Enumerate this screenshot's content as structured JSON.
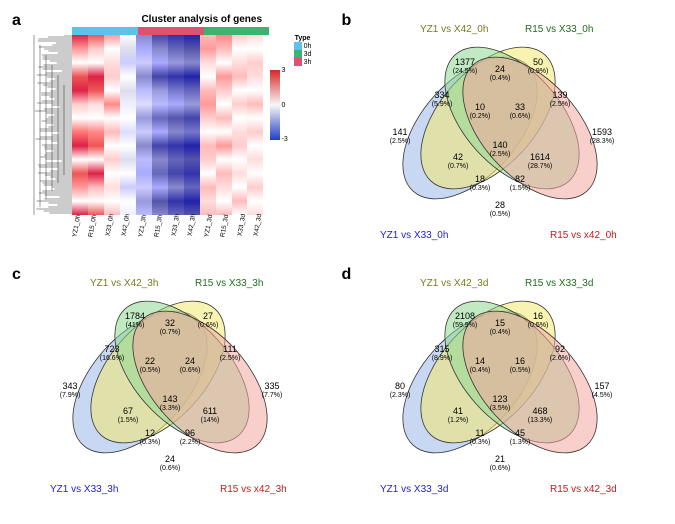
{
  "figure": {
    "panel_a": {
      "label": "a",
      "title": "Cluster analysis of genes",
      "type_legend_title": "Type",
      "type_colors": {
        "0h": "#5ec2e8",
        "3d": "#3cb371",
        "3h": "#e05070"
      },
      "type_bar_order": [
        "0h",
        "0h",
        "0h",
        "0h",
        "3h",
        "3h",
        "3h",
        "3h",
        "3d",
        "3d",
        "3d",
        "3d"
      ],
      "gradient": {
        "max": 3,
        "mid": 0,
        "min": -3,
        "top_color": "#d62728",
        "mid_color": "#ffffff",
        "bot_color": "#2040c0"
      },
      "samples": [
        "YZ1_0h",
        "R15_0h",
        "X33_0h",
        "X42_0h",
        "YZ1_3h",
        "R15_3h",
        "X33_3h",
        "X42_3h",
        "YZ1_3d",
        "R15_3d",
        "X33_3d",
        "X42_3d"
      ],
      "column_gradients": [
        "linear-gradient(#d24,#f99,#fff,#e55,#d24,#fcc,#fff,#f77,#d24,#fff,#e55,#f99,#fff,#d24)",
        "linear-gradient(#e55,#fcc,#fff,#d24,#e55,#fdd,#fff,#f88,#e55,#fff,#d24,#fbb,#fff,#e55)",
        "linear-gradient(#f99,#fff,#fdd,#fcc,#fff,#f88,#fff,#fbb,#fff,#fcc,#fff,#fdd,#fff,#fbb)",
        "linear-gradient(#fff,#dde,#ccf,#fff,#dde,#eef,#fff,#ddf,#fff,#dde,#fff,#ccf,#fff,#eef)",
        "linear-gradient(#88c,#aaf,#ccf,#88c,#bbf,#ddf,#99d,#ccf,#88c,#bbf,#aaf,#ccf,#99d,#bbf)",
        "linear-gradient(#44a,#88c,#aaf,#44a,#99d,#bbf,#66b,#aaf,#44a,#88c,#66b,#aaf,#55a,#88c)",
        "linear-gradient(#33a,#66b,#99d,#33a,#77c,#aaf,#55a,#88c,#33a,#66b,#44a,#88c,#33a,#66b)",
        "linear-gradient(#22a,#55a,#88c,#22a,#66b,#99d,#44a,#77c,#22a,#55a,#33a,#66b,#22a,#55a)",
        "linear-gradient(#fbb,#f99,#fdd,#fff,#fbb,#f99,#fcc,#fff,#fbb,#fcc,#fff,#fbb,#fdd,#fbb)",
        "linear-gradient(#f88,#fbb,#fff,#f99,#fcc,#fff,#fbb,#fff,#f99,#fff,#fbb,#fdd,#fff,#fbb)",
        "linear-gradient(#fcc,#fff,#fdd,#fbb,#fff,#fcc,#fff,#fdd,#fcc,#fff,#fdd,#fff,#fbb,#fff)",
        "linear-gradient(#fdd,#fff,#fcc,#fdd,#fff,#fbb,#fff,#fcc,#fff,#fdd,#fff,#fcc,#fff,#fdd)"
      ]
    },
    "venn_colors": {
      "tl": "#f2e96f",
      "tr": "#8fd98f",
      "bl": "#9db8e8",
      "br": "#f2a8a0"
    },
    "panel_b": {
      "label": "b",
      "titles": {
        "tl": "YZ1 vs X42_0h",
        "tr": "R15 vs X33_0h",
        "bl": "YZ1 vs X33_0h",
        "br": "R15 vs x42_0h"
      },
      "regions": {
        "only_tl": {
          "n": "1377",
          "p": "(24.5%)"
        },
        "only_tr": {
          "n": "50",
          "p": "(0.9%)"
        },
        "only_bl": {
          "n": "141",
          "p": "(2.5%)"
        },
        "only_br": {
          "n": "1593",
          "p": "(28.3%)"
        },
        "tl_tr": {
          "n": "24",
          "p": "(0.4%)"
        },
        "tl_bl": {
          "n": "334",
          "p": "(5.9%)"
        },
        "tr_br": {
          "n": "139",
          "p": "(2.5%)"
        },
        "bl_br": {
          "n": "28",
          "p": "(0.5%)"
        },
        "tl_br": {
          "n": "1614",
          "p": "(28.7%)"
        },
        "bl_tr": {
          "n": "42",
          "p": "(0.7%)"
        },
        "tl_tr_bl": {
          "n": "10",
          "p": "(0.2%)"
        },
        "tl_tr_br": {
          "n": "33",
          "p": "(0.6%)"
        },
        "tl_bl_br": {
          "n": "18",
          "p": "(0.3%)"
        },
        "tr_bl_br": {
          "n": "82",
          "p": "(1.5%)"
        },
        "all": {
          "n": "140",
          "p": "(2.5%)"
        }
      }
    },
    "panel_c": {
      "label": "c",
      "titles": {
        "tl": "YZ1 vs X42_3h",
        "tr": "R15 vs X33_3h",
        "bl": "YZ1 vs X33_3h",
        "br": "R15 vs x42_3h"
      },
      "regions": {
        "only_tl": {
          "n": "1784",
          "p": "(41%)"
        },
        "only_tr": {
          "n": "27",
          "p": "(0.6%)"
        },
        "only_bl": {
          "n": "343",
          "p": "(7.9%)"
        },
        "only_br": {
          "n": "335",
          "p": "(7.7%)"
        },
        "tl_tr": {
          "n": "32",
          "p": "(0.7%)"
        },
        "tl_bl": {
          "n": "723",
          "p": "(16.6%)"
        },
        "tr_br": {
          "n": "111",
          "p": "(2.5%)"
        },
        "bl_br": {
          "n": "24",
          "p": "(0.6%)"
        },
        "tl_br": {
          "n": "611",
          "p": "(14%)"
        },
        "bl_tr": {
          "n": "67",
          "p": "(1.5%)"
        },
        "tl_tr_bl": {
          "n": "22",
          "p": "(0.5%)"
        },
        "tl_tr_br": {
          "n": "24",
          "p": "(0.6%)"
        },
        "tl_bl_br": {
          "n": "12",
          "p": "(0.3%)"
        },
        "tr_bl_br": {
          "n": "96",
          "p": "(2.2%)"
        },
        "all": {
          "n": "143",
          "p": "(3.3%)"
        }
      }
    },
    "panel_d": {
      "label": "d",
      "titles": {
        "tl": "YZ1 vs X42_3d",
        "tr": "R15 vs X33_3d",
        "bl": "YZ1 vs X33_3d",
        "br": "R15 vs x42_3d"
      },
      "regions": {
        "only_tl": {
          "n": "2108",
          "p": "(59.9%)"
        },
        "only_tr": {
          "n": "16",
          "p": "(0.5%)"
        },
        "only_bl": {
          "n": "80",
          "p": "(2.3%)"
        },
        "only_br": {
          "n": "157",
          "p": "(4.5%)"
        },
        "tl_tr": {
          "n": "15",
          "p": "(0.4%)"
        },
        "tl_bl": {
          "n": "315",
          "p": "(8.9%)"
        },
        "tr_br": {
          "n": "92",
          "p": "(2.6%)"
        },
        "bl_br": {
          "n": "21",
          "p": "(0.6%)"
        },
        "tl_br": {
          "n": "468",
          "p": "(13.3%)"
        },
        "bl_tr": {
          "n": "41",
          "p": "(1.2%)"
        },
        "tl_tr_bl": {
          "n": "14",
          "p": "(0.4%)"
        },
        "tl_tr_br": {
          "n": "16",
          "p": "(0.5%)"
        },
        "tl_bl_br": {
          "n": "11",
          "p": "(0.3%)"
        },
        "tr_bl_br": {
          "n": "45",
          "p": "(1.3%)"
        },
        "all": {
          "n": "123",
          "p": "(3.5%)"
        }
      }
    }
  }
}
